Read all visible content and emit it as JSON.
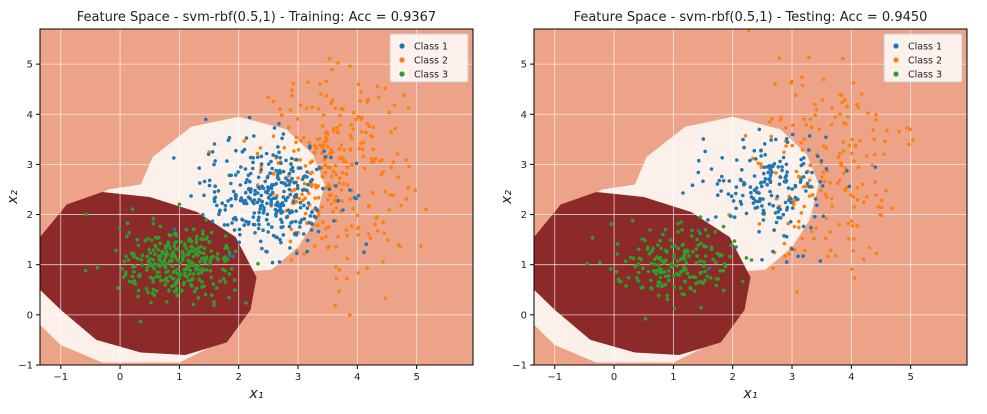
{
  "chart_data": [
    {
      "type": "scatter",
      "title": "Feature Space - svm-rbf(0.5,1) - Training: Acc = 0.9367",
      "xlabel": "x₁",
      "ylabel": "x₂",
      "xlim": [
        -1.35,
        5.95
      ],
      "ylim": [
        -1.0,
        5.7
      ],
      "xticks": [
        -1,
        0,
        1,
        2,
        3,
        4,
        5
      ],
      "yticks": [
        -1,
        0,
        1,
        2,
        3,
        4,
        5
      ],
      "grid": true,
      "legend": "top-right",
      "colors": {
        "class1": "#1f77b4",
        "class2": "#ff7f0e",
        "class3": "#2ca02c",
        "region_bg": "#eda388",
        "region_white": "#fcf1ea",
        "region_dark": "#8c2a2a"
      },
      "series": [
        {
          "name": "Class 1",
          "center": [
            2.5,
            2.4
          ],
          "spread": [
            0.55,
            0.55
          ],
          "count": 320
        },
        {
          "name": "Class 2",
          "center": [
            3.6,
            2.9
          ],
          "spread": [
            0.6,
            0.95
          ],
          "count": 300
        },
        {
          "name": "Class 3",
          "center": [
            1.0,
            1.0
          ],
          "spread": [
            0.5,
            0.38
          ],
          "count": 310
        }
      ]
    },
    {
      "type": "scatter",
      "title": "Feature Space - svm-rbf(0.5,1) - Testing: Acc = 0.9450",
      "xlabel": "x₁",
      "ylabel": "x₂",
      "xlim": [
        -1.35,
        5.95
      ],
      "ylim": [
        -1.0,
        5.7
      ],
      "xticks": [
        -1,
        0,
        1,
        2,
        3,
        4,
        5
      ],
      "yticks": [
        -1,
        0,
        1,
        2,
        3,
        4,
        5
      ],
      "grid": true,
      "legend": "top-right",
      "colors": {
        "class1": "#1f77b4",
        "class2": "#ff7f0e",
        "class3": "#2ca02c",
        "region_bg": "#eda388",
        "region_white": "#fcf1ea",
        "region_dark": "#8c2a2a"
      },
      "series": [
        {
          "name": "Class 1",
          "center": [
            2.6,
            2.5
          ],
          "spread": [
            0.55,
            0.55
          ],
          "count": 180
        },
        {
          "name": "Class 2",
          "center": [
            3.6,
            2.8
          ],
          "spread": [
            0.6,
            1.0
          ],
          "count": 190
        },
        {
          "name": "Class 3",
          "center": [
            1.0,
            1.0
          ],
          "spread": [
            0.5,
            0.4
          ],
          "count": 190
        }
      ]
    }
  ]
}
